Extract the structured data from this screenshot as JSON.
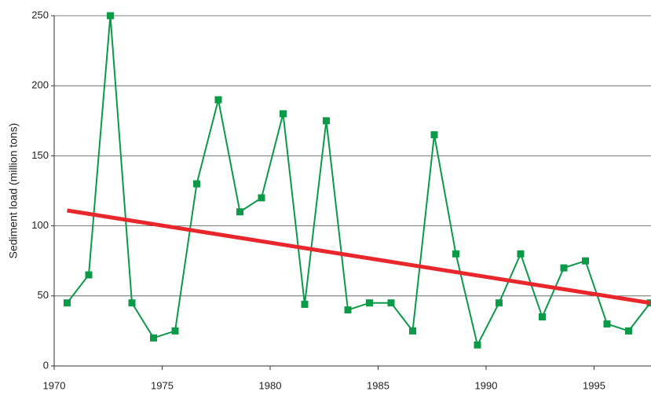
{
  "chart_data": {
    "type": "line",
    "y_label": "Sediment load (million tons)",
    "x": [
      1970.6,
      1971.6,
      1972.6,
      1973.6,
      1974.6,
      1975.6,
      1976.6,
      1977.6,
      1978.6,
      1979.6,
      1980.6,
      1981.6,
      1982.6,
      1983.6,
      1984.6,
      1985.6,
      1986.6,
      1987.6,
      1988.6,
      1989.6,
      1990.6,
      1991.6,
      1992.6,
      1993.6,
      1994.6,
      1995.6,
      1996.6,
      1997.6
    ],
    "values": [
      45,
      65,
      250,
      45,
      20,
      25,
      130,
      190,
      110,
      120,
      180,
      44,
      175,
      40,
      45,
      45,
      25,
      165,
      80,
      15,
      45,
      80,
      35,
      70,
      75,
      30,
      25,
      45
    ],
    "color": "#0a9a48",
    "trend": {
      "x": [
        1970.6,
        1997.6
      ],
      "values": [
        111,
        45
      ],
      "color": "#e8262b"
    },
    "xlim": [
      1970,
      1997.6
    ],
    "xticks": [
      1970,
      1975,
      1980,
      1985,
      1990,
      1995
    ],
    "ylim": [
      0,
      250
    ],
    "yticks": [
      0,
      50,
      100,
      150,
      200,
      250
    ],
    "grid": true
  }
}
